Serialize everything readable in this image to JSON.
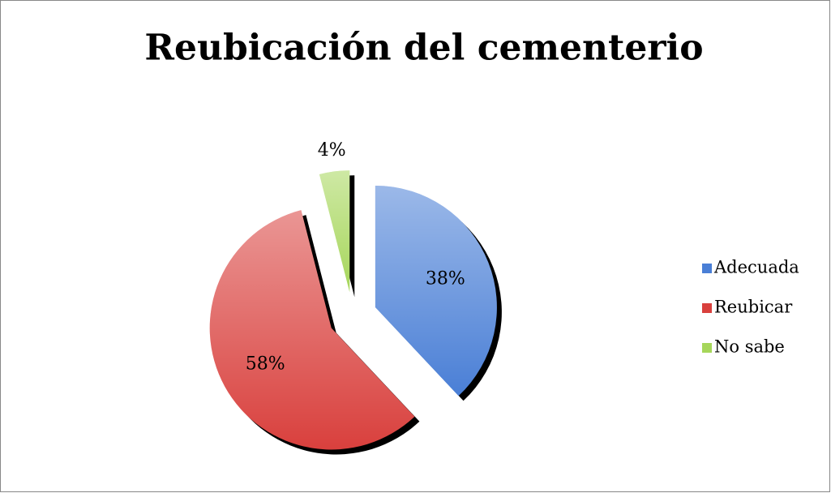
{
  "chart_data": {
    "type": "pie",
    "title": "Reubicación del cementerio",
    "categories": [
      "Adecuada",
      "Reubicar",
      "No sabe"
    ],
    "values": [
      38,
      58,
      4
    ],
    "value_labels": [
      "38%",
      "58%",
      "4%"
    ],
    "colors": [
      "#4a7fd6",
      "#d9403d",
      "#a6d65a"
    ],
    "legend": "right"
  }
}
